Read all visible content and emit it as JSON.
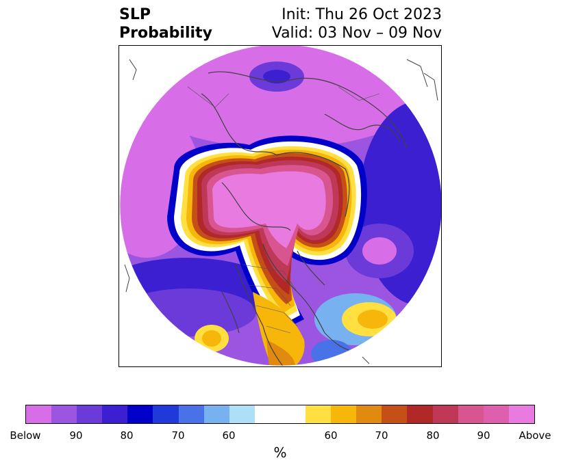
{
  "title": {
    "left_line1": "SLP",
    "left_line2": "Probability",
    "right_line1": "Init: Thu 26 Oct 2023",
    "right_line2": "Valid: 03 Nov – 09 Nov"
  },
  "colorbar": {
    "below_colors": [
      "#d86de8",
      "#9b55e0",
      "#6b3ad8",
      "#3c1fd0",
      "#0000c8",
      "#1f3ad8",
      "#4a72e8",
      "#77b1f0",
      "#ade0f7"
    ],
    "neutral_color": "#ffffff",
    "above_colors": [
      "#ffe040",
      "#f6b60a",
      "#e08a10",
      "#c45018",
      "#b02828",
      "#c03858",
      "#d85590",
      "#de5fae",
      "#e87ae0"
    ],
    "tick_labels": [
      "Below",
      "90",
      "80",
      "70",
      "60",
      "60",
      "70",
      "80",
      "90",
      "Above"
    ],
    "unit": "%"
  }
}
